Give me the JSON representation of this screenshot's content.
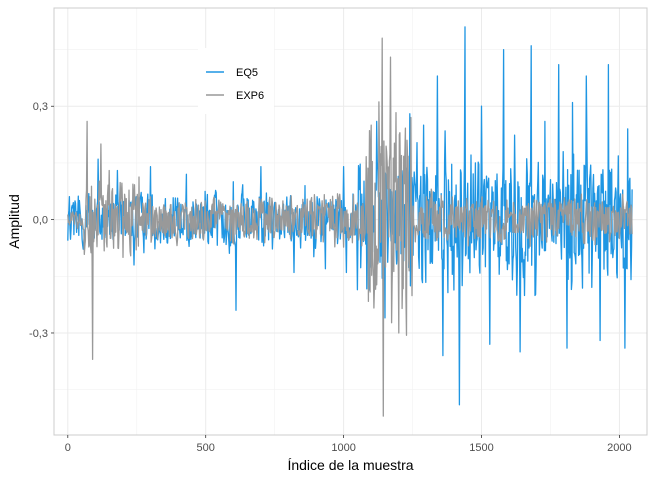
{
  "chart_data": {
    "type": "line",
    "xlabel": "Índice de la muestra",
    "ylabel": "Amplitud",
    "xlim": [
      -50,
      2100
    ],
    "ylim": [
      -0.57,
      0.56
    ],
    "x_ticks": [
      0,
      500,
      1000,
      1500,
      2000
    ],
    "x_tick_labels": [
      "0",
      "500",
      "1000",
      "1500",
      "2000"
    ],
    "y_ticks": [
      -0.3,
      0.0,
      0.3
    ],
    "y_tick_labels": [
      "-0,3",
      "0,0",
      "0,3"
    ],
    "grid": true,
    "legend_position": "top-left",
    "series": [
      {
        "name": "EQ5",
        "color": "#1f96e3",
        "n_points": 2048,
        "segments": [
          {
            "start": 0,
            "end": 1050,
            "amplitude": 0.06,
            "peaks": [
              [
                110,
                0.16
              ],
              [
                180,
                0.13
              ],
              [
                240,
                -0.12
              ],
              [
                300,
                0.14
              ],
              [
                430,
                0.12
              ],
              [
                600,
                0.1
              ],
              [
                610,
                -0.24
              ],
              [
                700,
                0.14
              ],
              [
                820,
                -0.14
              ],
              [
                860,
                0.09
              ],
              [
                935,
                -0.13
              ],
              [
                1000,
                0.14
              ],
              [
                1010,
                -0.14
              ]
            ]
          },
          {
            "start": 1050,
            "end": 2048,
            "amplitude": 0.14,
            "peaks": [
              [
                1120,
                0.26
              ],
              [
                1150,
                -0.26
              ],
              [
                1240,
                0.28
              ],
              [
                1290,
                0.25
              ],
              [
                1340,
                0.38
              ],
              [
                1360,
                -0.36
              ],
              [
                1420,
                -0.49
              ],
              [
                1440,
                0.51
              ],
              [
                1500,
                0.3
              ],
              [
                1530,
                -0.33
              ],
              [
                1580,
                0.45
              ],
              [
                1640,
                -0.35
              ],
              [
                1680,
                0.46
              ],
              [
                1730,
                0.26
              ],
              [
                1780,
                0.41
              ],
              [
                1810,
                -0.34
              ],
              [
                1830,
                0.31
              ],
              [
                1880,
                0.38
              ],
              [
                1930,
                -0.32
              ],
              [
                1960,
                0.41
              ],
              [
                2020,
                -0.34
              ],
              [
                2030,
                0.24
              ],
              [
                2048,
                0.08
              ]
            ]
          }
        ]
      },
      {
        "name": "EXP6",
        "color": "#999999",
        "n_points": 2048,
        "segments": [
          {
            "start": 0,
            "end": 60,
            "amplitude": 0.02,
            "peaks": []
          },
          {
            "start": 60,
            "end": 260,
            "amplitude": 0.09,
            "peaks": [
              [
                70,
                0.26
              ],
              [
                90,
                -0.37
              ],
              [
                120,
                0.2
              ],
              [
                150,
                0.13
              ],
              [
                200,
                -0.1
              ]
            ]
          },
          {
            "start": 260,
            "end": 1080,
            "amplitude": 0.05,
            "peaks": [
              [
                300,
                0.06
              ],
              [
                600,
                0.05
              ],
              [
                900,
                -0.05
              ]
            ]
          },
          {
            "start": 1080,
            "end": 1250,
            "amplitude": 0.22,
            "peaks": [
              [
                1100,
                0.25
              ],
              [
                1140,
                0.48
              ],
              [
                1145,
                -0.52
              ],
              [
                1170,
                0.43
              ],
              [
                1200,
                -0.3
              ],
              [
                1230,
                0.21
              ]
            ]
          },
          {
            "start": 1250,
            "end": 2048,
            "amplitude": 0.05,
            "peaks": [
              [
                1300,
                0.06
              ],
              [
                1700,
                0.05
              ],
              [
                2000,
                -0.05
              ]
            ]
          }
        ]
      }
    ]
  }
}
